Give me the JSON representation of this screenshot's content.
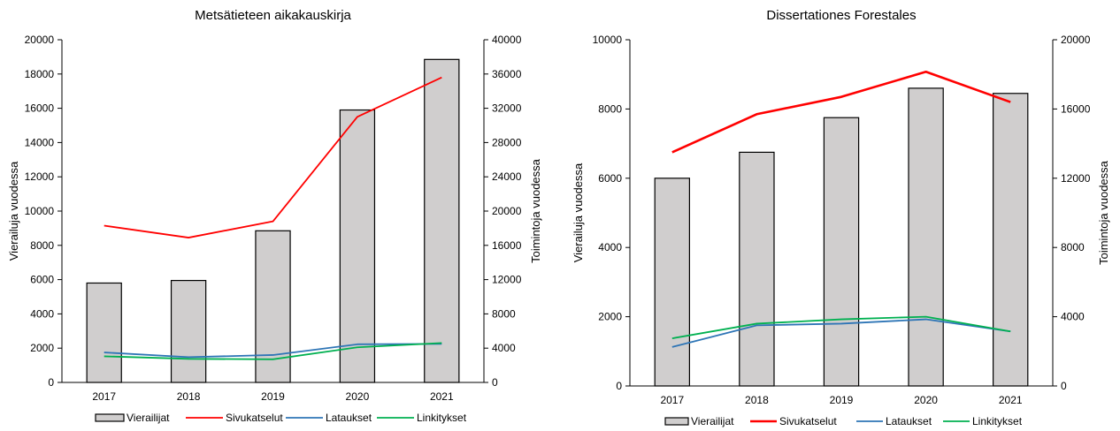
{
  "chart_data": [
    {
      "type": "bar",
      "title": "Metsätieteen aikakauskirja",
      "categories": [
        "2017",
        "2018",
        "2019",
        "2020",
        "2021"
      ],
      "ylabel": "Vierailuja vuodessa",
      "y2label": "Toimintoja vuodessa",
      "ylim": [
        0,
        20000
      ],
      "y2lim": [
        0,
        40000
      ],
      "yticks": [
        "0",
        "2000",
        "4000",
        "6000",
        "8000",
        "10000",
        "12000",
        "14000",
        "16000",
        "18000",
        "20000"
      ],
      "y2ticks": [
        "0",
        "4000",
        "8000",
        "12000",
        "16000",
        "20000",
        "24000",
        "28000",
        "32000",
        "36000",
        "40000"
      ],
      "grid": false,
      "legend_position": "bottom",
      "series": [
        {
          "name": "Vierailijat",
          "type": "bar",
          "axis": "left",
          "color": "#d0cece",
          "values": [
            5800,
            5950,
            8850,
            15900,
            18850
          ]
        },
        {
          "name": "Sivukatselut",
          "type": "line",
          "axis": "right",
          "color": "#ff0000",
          "values": [
            18300,
            16900,
            18800,
            31000,
            35600
          ]
        },
        {
          "name": "Lataukset",
          "type": "line",
          "axis": "right",
          "color": "#2e75b6",
          "values": [
            3500,
            2950,
            3200,
            4450,
            4500
          ]
        },
        {
          "name": "Linkitykset",
          "type": "line",
          "axis": "right",
          "color": "#00b050",
          "values": [
            3050,
            2750,
            2700,
            4100,
            4600
          ]
        }
      ]
    },
    {
      "type": "bar",
      "title": "Dissertationes Forestales",
      "categories": [
        "2017",
        "2018",
        "2019",
        "2020",
        "2021"
      ],
      "ylabel": "Vierailuja vuodessa",
      "y2label": "Toimintoja vuodessa",
      "ylim": [
        0,
        10000
      ],
      "y2lim": [
        0,
        20000
      ],
      "yticks": [
        "0",
        "2000",
        "4000",
        "6000",
        "8000",
        "10000"
      ],
      "y2ticks": [
        "0",
        "4000",
        "8000",
        "12000",
        "16000",
        "20000"
      ],
      "grid": false,
      "legend_position": "bottom",
      "series": [
        {
          "name": "Vierailijat",
          "type": "bar",
          "axis": "left",
          "color": "#d0cece",
          "values": [
            6000,
            6750,
            7750,
            8600,
            8450
          ]
        },
        {
          "name": "Sivukatselut",
          "type": "line",
          "axis": "right",
          "color": "#ff0000",
          "values": [
            13500,
            15700,
            16700,
            18150,
            16400
          ]
        },
        {
          "name": "Lataukset",
          "type": "line",
          "axis": "right",
          "color": "#2e75b6",
          "values": [
            2250,
            3500,
            3600,
            3850,
            3150
          ]
        },
        {
          "name": "Linkitykset",
          "type": "line",
          "axis": "right",
          "color": "#00b050",
          "values": [
            2750,
            3600,
            3850,
            4000,
            3150
          ]
        }
      ]
    }
  ]
}
